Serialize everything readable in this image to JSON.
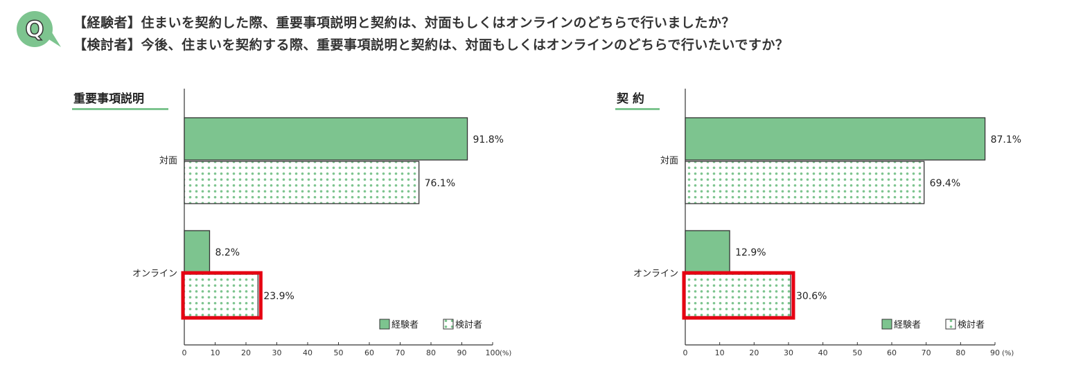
{
  "question": {
    "icon": "Q",
    "line1": "【経験者】住まいを契約した際、重要事項説明と契約は、対面もしくはオンラインのどちらで行いましたか？",
    "line2": "【検討者】今後、住まいを契約する際、重要事項説明と契約は、対面もしくはオンラインのどちらで行いたいですか？"
  },
  "colors": {
    "experienced": "#7dc48f",
    "considering_dots": "#7dc48f",
    "highlight": "#e60012",
    "accent": "#7dc48f"
  },
  "chart_data": [
    {
      "type": "bar",
      "orientation": "horizontal",
      "title": "重要事項説明",
      "categories": [
        "対面",
        "オンライン"
      ],
      "series": [
        {
          "name": "経験者",
          "values": [
            91.8,
            8.2
          ],
          "labels": [
            "91.8%",
            "8.2%"
          ],
          "pattern": "solid"
        },
        {
          "name": "検討者",
          "values": [
            76.1,
            23.9
          ],
          "labels": [
            "76.1%",
            "23.9%"
          ],
          "pattern": "dotted"
        }
      ],
      "xlim": [
        0,
        100
      ],
      "xticks": [
        "0",
        "10",
        "20",
        "30",
        "40",
        "50",
        "60",
        "70",
        "80",
        "90",
        "100"
      ],
      "xunit": "(%)",
      "highlighted": {
        "category": "オンライン",
        "series": "検討者"
      },
      "legend": "bottom-right",
      "grid": false
    },
    {
      "type": "bar",
      "orientation": "horizontal",
      "title": "契 約",
      "categories": [
        "対面",
        "オンライン"
      ],
      "series": [
        {
          "name": "経験者",
          "values": [
            87.1,
            12.9
          ],
          "labels": [
            "87.1%",
            "12.9%"
          ],
          "pattern": "solid"
        },
        {
          "name": "検討者",
          "values": [
            69.4,
            30.6
          ],
          "labels": [
            "69.4%",
            "30.6%"
          ],
          "pattern": "dotted"
        }
      ],
      "xlim": [
        0,
        90
      ],
      "xticks": [
        "0",
        "10",
        "20",
        "30",
        "40",
        "50",
        "60",
        "70",
        "80",
        "90"
      ],
      "xunit": "(%)",
      "highlighted": {
        "category": "オンライン",
        "series": "検討者"
      },
      "legend": "bottom-right",
      "grid": false
    }
  ]
}
